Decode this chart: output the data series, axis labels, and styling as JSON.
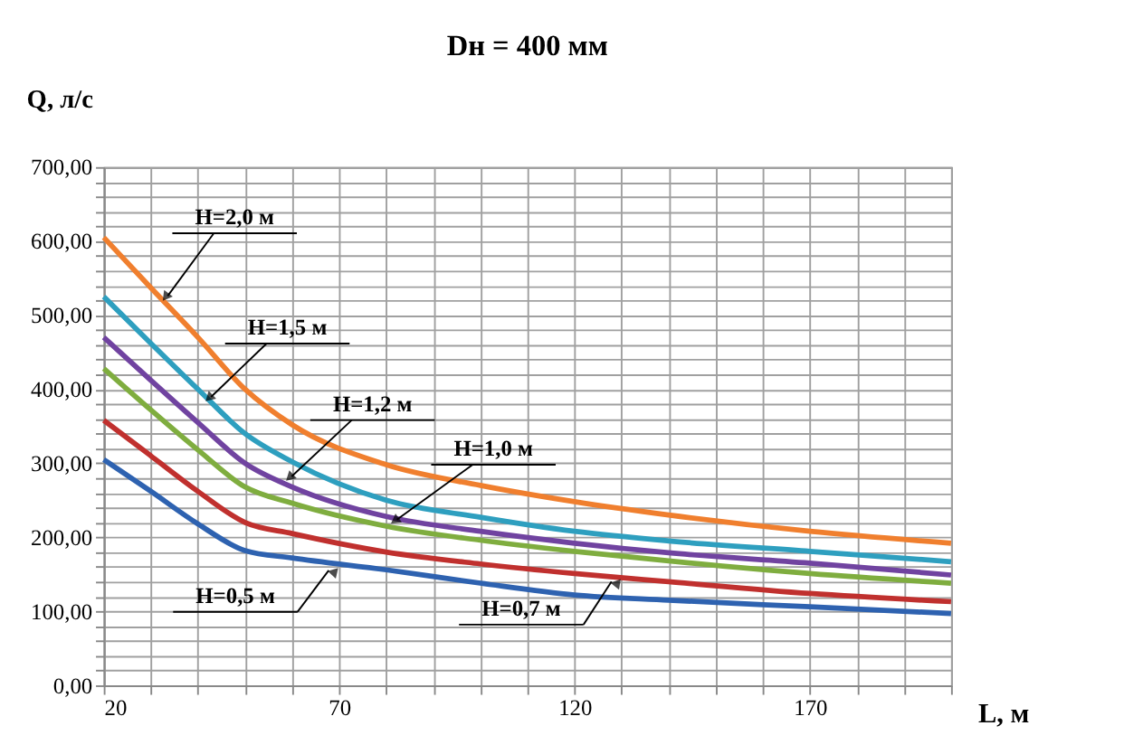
{
  "chart_data": {
    "type": "line",
    "title": "Dн = 400 мм",
    "xlabel": "L, м",
    "ylabel": "Q, л/с",
    "x": [
      20,
      30,
      40,
      50,
      60,
      80,
      100,
      120,
      140,
      170,
      200
    ],
    "series": [
      {
        "color": "#f07f2e",
        "values": [
          605,
          537,
          470,
          400,
          352,
          298,
          270,
          248,
          230,
          208,
          192
        ]
      },
      {
        "color": "#2e9fbf",
        "values": [
          525,
          462,
          400,
          340,
          302,
          250,
          227,
          208,
          195,
          181,
          167
        ]
      },
      {
        "color": "#7043a0",
        "values": [
          470,
          412,
          355,
          300,
          268,
          228,
          208,
          192,
          179,
          165,
          149
        ]
      },
      {
        "color": "#7fad3f",
        "values": [
          428,
          372,
          318,
          268,
          246,
          215,
          196,
          181,
          168,
          151,
          138
        ]
      },
      {
        "color": "#c0302e",
        "values": [
          358,
          310,
          262,
          220,
          205,
          180,
          164,
          151,
          140,
          124,
          113
        ]
      },
      {
        "color": "#2e62b0",
        "values": [
          305,
          262,
          218,
          182,
          172,
          156,
          138,
          122,
          115,
          106,
          97
        ]
      }
    ],
    "xlim": [
      20,
      200
    ],
    "xticks": [
      20,
      {
        "value": 30,
        "label": null
      },
      {
        "value": 40,
        "label": null
      },
      {
        "value": 50,
        "label": null
      },
      {
        "value": 60,
        "label": null
      },
      70,
      {
        "value": 80,
        "label": null
      },
      {
        "value": 90,
        "label": null
      },
      {
        "value": 100,
        "label": null
      },
      {
        "value": 110,
        "label": null
      },
      120,
      {
        "value": 130,
        "label": null
      },
      {
        "value": 140,
        "label": null
      },
      {
        "value": 150,
        "label": null
      },
      {
        "value": 160,
        "label": null
      },
      170,
      {
        "value": 180,
        "label": null
      },
      {
        "value": 190,
        "label": null
      },
      {
        "value": 200,
        "label": null
      }
    ],
    "ylim": [
      0,
      700
    ],
    "yticks": [
      {
        "value": 0,
        "label": "0,00"
      },
      {
        "value": 20,
        "label": null
      },
      {
        "value": 40,
        "label": null
      },
      {
        "value": 60,
        "label": null
      },
      {
        "value": 80,
        "label": null
      },
      {
        "value": 100,
        "label": "100,00"
      },
      {
        "value": 120,
        "label": null
      },
      {
        "value": 140,
        "label": null
      },
      {
        "value": 160,
        "label": null
      },
      {
        "value": 180,
        "label": null
      },
      {
        "value": 200,
        "label": "200,00"
      },
      {
        "value": 220,
        "label": null
      },
      {
        "value": 240,
        "label": null
      },
      {
        "value": 260,
        "label": null
      },
      {
        "value": 280,
        "label": null
      },
      {
        "value": 300,
        "label": "300,00"
      },
      {
        "value": 320,
        "label": null
      },
      {
        "value": 340,
        "label": null
      },
      {
        "value": 360,
        "label": null
      },
      {
        "value": 380,
        "label": null
      },
      {
        "value": 400,
        "label": "400,00"
      },
      {
        "value": 420,
        "label": null
      },
      {
        "value": 440,
        "label": null
      },
      {
        "value": 460,
        "label": null
      },
      {
        "value": 480,
        "label": null
      },
      {
        "value": 500,
        "label": "500,00"
      },
      {
        "value": 520,
        "label": null
      },
      {
        "value": 540,
        "label": null
      },
      {
        "value": 560,
        "label": null
      },
      {
        "value": 580,
        "label": null
      },
      {
        "value": 600,
        "label": "600,00"
      },
      {
        "value": 620,
        "label": null
      },
      {
        "value": 640,
        "label": null
      },
      {
        "value": 660,
        "label": null
      },
      {
        "value": 680,
        "label": null
      },
      {
        "value": 700,
        "label": "700,00"
      }
    ],
    "grid": true,
    "marker": "none",
    "line_style": "solid",
    "annotations": [
      {
        "text": "H=2,0 м",
        "x": 32,
        "y": 515
      },
      {
        "text": "H=1,5 м",
        "x": 41,
        "y": 380
      },
      {
        "text": "H=1,2 м",
        "x": 58,
        "y": 272
      },
      {
        "text": "H=1,0 м",
        "x": 80,
        "y": 214
      },
      {
        "text": "H=0,5 м",
        "x": 70,
        "y": 160
      },
      {
        "text": "H=0,7 м",
        "x": 130,
        "y": 145
      }
    ]
  }
}
